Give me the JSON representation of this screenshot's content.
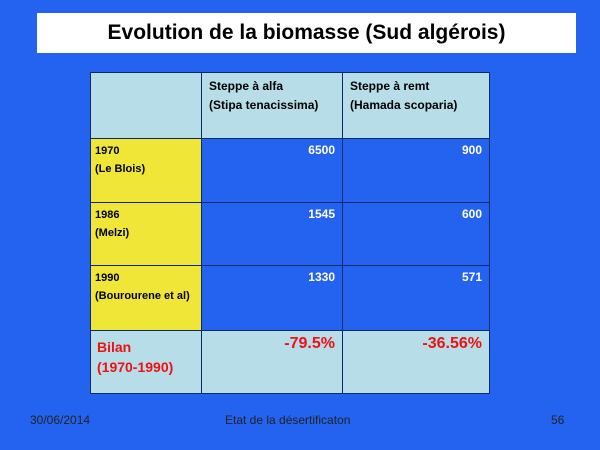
{
  "header": {
    "title": "Evolution de la biomasse (Sud algérois)"
  },
  "table": {
    "columns": [
      [
        "Steppe à alfa",
        "(Stipa tenacissima)"
      ],
      [
        "Steppe à remt",
        "(Hamada scoparia)"
      ]
    ],
    "rows": [
      {
        "label": [
          "1970",
          "(Le Blois)"
        ],
        "values": [
          6500,
          900
        ]
      },
      {
        "label": [
          "1986",
          "(Melzi)"
        ],
        "values": [
          1545,
          600
        ]
      },
      {
        "label": [
          "1990",
          "(Bourourene et al)"
        ],
        "values": [
          1330,
          571
        ]
      },
      {
        "label": [
          "Bilan",
          "(1970-1990)"
        ],
        "values": [
          "-79.5%",
          "-36.56%"
        ]
      }
    ]
  },
  "footer": {
    "date": "30/06/2014",
    "center": "Etat de la désertificaton",
    "page": 56
  }
}
